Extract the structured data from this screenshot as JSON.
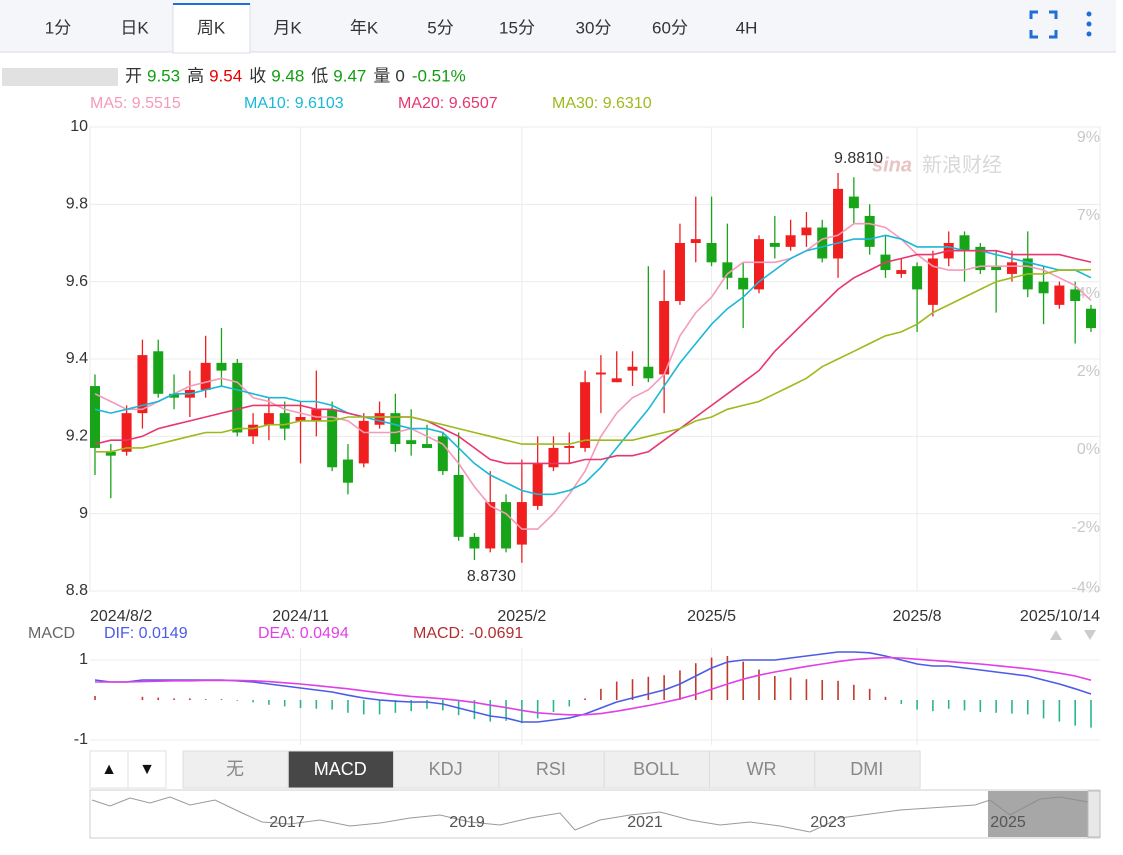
{
  "tabs": [
    "1分",
    "日K",
    "周K",
    "月K",
    "年K",
    "5分",
    "15分",
    "30分",
    "60分",
    "4H"
  ],
  "active_tab": 2,
  "quote": {
    "items": [
      {
        "label": "开",
        "value": 9.53,
        "color": "#109e10"
      },
      {
        "label": "高",
        "value": 9.54,
        "color": "#e60000"
      },
      {
        "label": "收",
        "value": 9.48,
        "color": "#109e10"
      },
      {
        "label": "低",
        "value": 9.47,
        "color": "#109e10"
      },
      {
        "label": "量",
        "value": 0,
        "color": "#333333"
      }
    ],
    "change": {
      "value": -0.51,
      "label": "-0.51%",
      "color": "#109e10"
    }
  },
  "chart_data": [
    {
      "type": "candlestick",
      "categories": [
        "2024/8/2",
        null,
        null,
        null,
        null,
        null,
        null,
        null,
        null,
        null,
        null,
        null,
        null,
        "2024/11",
        null,
        null,
        null,
        null,
        null,
        null,
        null,
        null,
        null,
        null,
        null,
        null,
        null,
        "2025/2",
        null,
        null,
        null,
        null,
        null,
        null,
        null,
        null,
        null,
        null,
        null,
        "2025/5",
        null,
        null,
        null,
        null,
        null,
        null,
        null,
        null,
        null,
        null,
        null,
        null,
        "2025/8",
        null,
        null,
        null,
        null,
        null,
        null,
        null,
        null,
        null,
        null,
        "2025/10/14"
      ],
      "open": [
        9.33,
        9.16,
        9.16,
        9.26,
        9.42,
        9.31,
        9.3,
        9.32,
        9.39,
        9.39,
        9.2,
        9.23,
        9.26,
        9.24,
        9.24,
        9.27,
        9.14,
        9.13,
        9.23,
        9.26,
        9.19,
        9.18,
        9.2,
        9.1,
        8.94,
        8.91,
        9.03,
        8.92,
        9.02,
        9.12,
        9.17,
        9.17,
        9.36,
        9.34,
        9.37,
        9.38,
        9.36,
        9.55,
        9.7,
        9.7,
        9.65,
        9.61,
        9.58,
        9.7,
        9.69,
        9.72,
        9.74,
        9.66,
        9.82,
        9.77,
        9.67,
        9.62,
        9.64,
        9.54,
        9.66,
        9.72,
        9.69,
        9.64,
        9.62,
        9.66,
        9.6,
        9.54,
        9.58,
        9.53
      ],
      "high": [
        9.36,
        9.18,
        9.28,
        9.45,
        9.45,
        9.36,
        9.37,
        9.46,
        9.48,
        9.4,
        9.26,
        9.3,
        9.29,
        9.29,
        9.37,
        9.29,
        9.18,
        9.26,
        9.29,
        9.31,
        9.27,
        9.23,
        9.21,
        9.21,
        8.95,
        9.11,
        9.05,
        9.14,
        9.2,
        9.2,
        9.21,
        9.37,
        9.41,
        9.42,
        9.42,
        9.64,
        9.63,
        9.75,
        9.82,
        9.82,
        9.75,
        9.65,
        9.72,
        9.77,
        9.76,
        9.78,
        9.76,
        9.881,
        9.87,
        9.8,
        9.72,
        9.66,
        9.65,
        9.68,
        9.73,
        9.73,
        9.7,
        9.68,
        9.68,
        9.73,
        9.64,
        9.6,
        9.6,
        9.54
      ],
      "low": [
        9.1,
        9.04,
        9.15,
        9.22,
        9.3,
        9.27,
        9.25,
        9.3,
        9.33,
        9.2,
        9.18,
        9.19,
        9.19,
        9.13,
        9.2,
        9.11,
        9.05,
        9.12,
        9.22,
        9.16,
        9.15,
        9.17,
        9.1,
        8.93,
        8.88,
        8.9,
        8.9,
        8.873,
        9.01,
        9.11,
        9.13,
        9.16,
        9.26,
        9.34,
        9.33,
        9.34,
        9.26,
        9.54,
        9.65,
        9.64,
        9.58,
        9.48,
        9.57,
        9.66,
        9.68,
        9.69,
        9.65,
        9.61,
        9.75,
        9.67,
        9.61,
        9.61,
        9.47,
        9.51,
        9.64,
        9.6,
        9.62,
        9.52,
        9.6,
        9.56,
        9.49,
        9.53,
        9.44,
        9.47
      ],
      "close": [
        9.17,
        9.15,
        9.26,
        9.41,
        9.31,
        9.3,
        9.32,
        9.39,
        9.37,
        9.21,
        9.23,
        9.26,
        9.22,
        9.25,
        9.27,
        9.12,
        9.08,
        9.24,
        9.26,
        9.18,
        9.18,
        9.17,
        9.11,
        8.94,
        8.91,
        9.03,
        8.91,
        9.03,
        9.13,
        9.17,
        9.175,
        9.34,
        9.365,
        9.35,
        9.38,
        9.35,
        9.55,
        9.7,
        9.71,
        9.65,
        9.61,
        9.58,
        9.71,
        9.69,
        9.72,
        9.74,
        9.66,
        9.84,
        9.79,
        9.69,
        9.63,
        9.63,
        9.58,
        9.66,
        9.7,
        9.68,
        9.63,
        9.63,
        9.65,
        9.58,
        9.57,
        9.59,
        9.55,
        9.48
      ],
      "up_color": "#f01e1e",
      "down_color": "#18a418",
      "ylim": [
        8.8,
        10
      ],
      "yticks": [
        8.8,
        9,
        9.2,
        9.4,
        9.6,
        9.8,
        10
      ],
      "y2lim": [
        -3.98,
        9.11
      ],
      "y2ticks": [
        {
          "value": 8.8,
          "label": "9%"
        },
        {
          "value": 6.6,
          "label": "7%"
        },
        {
          "value": 4.4,
          "label": "4%"
        },
        {
          "value": 2.2,
          "label": "2%"
        },
        {
          "value": 0,
          "label": "0%"
        },
        {
          "value": -2.2,
          "label": "-2%"
        },
        {
          "value": -3.9,
          "label": "-4%"
        }
      ],
      "grid": true,
      "series": [
        {
          "label": "MA5: 9.5515",
          "color": "#f59ab8",
          "values": [
            9.31,
            9.29,
            9.27,
            9.27,
            9.29,
            9.31,
            9.33,
            9.34,
            9.35,
            9.34,
            9.3,
            9.29,
            9.27,
            9.26,
            9.25,
            9.25,
            9.24,
            9.21,
            9.21,
            9.21,
            9.22,
            9.2,
            9.18,
            9.13,
            9.07,
            9.02,
            9.0,
            8.96,
            8.96,
            9.0,
            9.05,
            9.11,
            9.2,
            9.26,
            9.3,
            9.32,
            9.36,
            9.46,
            9.52,
            9.56,
            9.62,
            9.65,
            9.65,
            9.65,
            9.66,
            9.68,
            9.71,
            9.72,
            9.75,
            9.75,
            9.74,
            9.71,
            9.67,
            9.64,
            9.63,
            9.63,
            9.64,
            9.64,
            9.64,
            9.64,
            9.63,
            9.61,
            9.59,
            9.5515
          ]
        },
        {
          "label": "MA10: 9.6103",
          "color": "#1ab8d8",
          "values": [
            9.27,
            9.26,
            9.27,
            9.28,
            9.29,
            9.31,
            9.31,
            9.32,
            9.33,
            9.32,
            9.31,
            9.3,
            9.3,
            9.29,
            9.29,
            9.28,
            9.26,
            9.25,
            9.24,
            9.23,
            9.22,
            9.22,
            9.21,
            9.17,
            9.13,
            9.1,
            9.08,
            9.06,
            9.05,
            9.05,
            9.06,
            9.08,
            9.12,
            9.17,
            9.22,
            9.27,
            9.33,
            9.39,
            9.44,
            9.49,
            9.53,
            9.56,
            9.6,
            9.63,
            9.66,
            9.68,
            9.69,
            9.7,
            9.71,
            9.71,
            9.72,
            9.71,
            9.69,
            9.69,
            9.69,
            9.68,
            9.68,
            9.67,
            9.66,
            9.65,
            9.64,
            9.63,
            9.63,
            9.6103
          ]
        },
        {
          "label": "MA20: 9.6507",
          "color": "#e8366e",
          "values": [
            9.18,
            9.19,
            9.19,
            9.2,
            9.22,
            9.23,
            9.24,
            9.25,
            9.26,
            9.27,
            9.28,
            9.28,
            9.28,
            9.28,
            9.27,
            9.27,
            9.26,
            9.25,
            9.25,
            9.25,
            9.25,
            9.24,
            9.22,
            9.2,
            9.17,
            9.14,
            9.13,
            9.13,
            9.13,
            9.13,
            9.13,
            9.14,
            9.14,
            9.15,
            9.15,
            9.16,
            9.19,
            9.22,
            9.25,
            9.28,
            9.31,
            9.34,
            9.37,
            9.42,
            9.46,
            9.5,
            9.54,
            9.58,
            9.61,
            9.63,
            9.65,
            9.66,
            9.67,
            9.67,
            9.68,
            9.68,
            9.68,
            9.68,
            9.67,
            9.67,
            9.67,
            9.67,
            9.66,
            9.6507
          ]
        },
        {
          "label": "MA30: 9.6310",
          "color": "#9cba1c",
          "values": [
            9.16,
            9.16,
            9.17,
            9.17,
            9.18,
            9.19,
            9.2,
            9.21,
            9.21,
            9.22,
            9.22,
            9.23,
            9.23,
            9.24,
            9.24,
            9.24,
            9.25,
            9.25,
            9.25,
            9.25,
            9.25,
            9.24,
            9.23,
            9.22,
            9.21,
            9.2,
            9.19,
            9.18,
            9.18,
            9.18,
            9.18,
            9.19,
            9.19,
            9.19,
            9.19,
            9.2,
            9.21,
            9.22,
            9.24,
            9.25,
            9.27,
            9.28,
            9.29,
            9.31,
            9.33,
            9.35,
            9.38,
            9.4,
            9.42,
            9.44,
            9.46,
            9.47,
            9.49,
            9.52,
            9.54,
            9.56,
            9.58,
            9.6,
            9.61,
            9.62,
            9.62,
            9.63,
            9.63,
            9.631
          ]
        }
      ],
      "annotations": {
        "max": "9.8810",
        "min": "8.8730"
      },
      "watermark": {
        "brand": "sina",
        "name": "新浪财经"
      }
    },
    {
      "type": "macd",
      "title": "MACD",
      "ylim": [
        -0.1125,
        0.13
      ],
      "yticks": [
        {
          "value": 0.1,
          "label": "1"
        },
        {
          "value": -0.1,
          "label": "-1"
        }
      ],
      "series": [
        {
          "label": "DIF: 0.0149",
          "color": "#4b5ce6",
          "values": [
            0.05,
            0.045,
            0.045,
            0.05,
            0.05,
            0.05,
            0.05,
            0.05,
            0.05,
            0.048,
            0.045,
            0.04,
            0.035,
            0.03,
            0.025,
            0.02,
            0.012,
            0.005,
            0.0,
            -0.003,
            -0.005,
            -0.005,
            -0.01,
            -0.02,
            -0.03,
            -0.04,
            -0.045,
            -0.055,
            -0.055,
            -0.05,
            -0.045,
            -0.035,
            -0.02,
            -0.005,
            0.005,
            0.015,
            0.025,
            0.04,
            0.06,
            0.08,
            0.095,
            0.1,
            0.1,
            0.1,
            0.105,
            0.11,
            0.115,
            0.12,
            0.12,
            0.118,
            0.11,
            0.1,
            0.09,
            0.085,
            0.085,
            0.08,
            0.075,
            0.07,
            0.065,
            0.06,
            0.05,
            0.04,
            0.028,
            0.0149
          ]
        },
        {
          "label": "DEA: 0.0494",
          "color": "#e040e6",
          "values": [
            0.045,
            0.045,
            0.045,
            0.046,
            0.047,
            0.048,
            0.048,
            0.049,
            0.049,
            0.049,
            0.048,
            0.046,
            0.043,
            0.04,
            0.036,
            0.032,
            0.028,
            0.023,
            0.018,
            0.013,
            0.009,
            0.006,
            0.003,
            -0.001,
            -0.006,
            -0.013,
            -0.019,
            -0.026,
            -0.032,
            -0.035,
            -0.037,
            -0.037,
            -0.034,
            -0.028,
            -0.021,
            -0.014,
            -0.006,
            0.003,
            0.014,
            0.027,
            0.04,
            0.052,
            0.062,
            0.07,
            0.077,
            0.084,
            0.09,
            0.096,
            0.101,
            0.104,
            0.106,
            0.105,
            0.102,
            0.099,
            0.096,
            0.093,
            0.09,
            0.086,
            0.082,
            0.078,
            0.073,
            0.067,
            0.06,
            0.0494
          ]
        }
      ],
      "bars": {
        "label": "MACD: -0.0691",
        "color": "#b03030",
        "up_color": "#c0392b",
        "down_color": "#2bb58f",
        "values": [
          0.01,
          0,
          0,
          0.008,
          0.006,
          0.004,
          0.004,
          0.002,
          0.002,
          -0.002,
          -0.006,
          -0.012,
          -0.016,
          -0.02,
          -0.022,
          -0.024,
          -0.032,
          -0.036,
          -0.036,
          -0.032,
          -0.028,
          -0.022,
          -0.026,
          -0.038,
          -0.048,
          -0.054,
          -0.052,
          -0.058,
          -0.046,
          -0.03,
          -0.016,
          0.004,
          0.028,
          0.046,
          0.052,
          0.058,
          0.062,
          0.074,
          0.092,
          0.106,
          0.11,
          0.096,
          0.076,
          0.06,
          0.056,
          0.052,
          0.05,
          0.048,
          0.038,
          0.028,
          0.008,
          -0.01,
          -0.024,
          -0.028,
          -0.022,
          -0.026,
          -0.03,
          -0.032,
          -0.034,
          -0.036,
          -0.046,
          -0.054,
          -0.064,
          -0.0691
        ]
      }
    }
  ],
  "nav_buttons": [
    "▲",
    "▼"
  ],
  "indicator_tabs": [
    "无",
    "MACD",
    "KDJ",
    "RSI",
    "BOLL",
    "WR",
    "DMI"
  ],
  "active_indicator": 1,
  "navigator": {
    "labels": [
      "2017",
      "2019",
      "2021",
      "2023",
      "2025"
    ]
  }
}
